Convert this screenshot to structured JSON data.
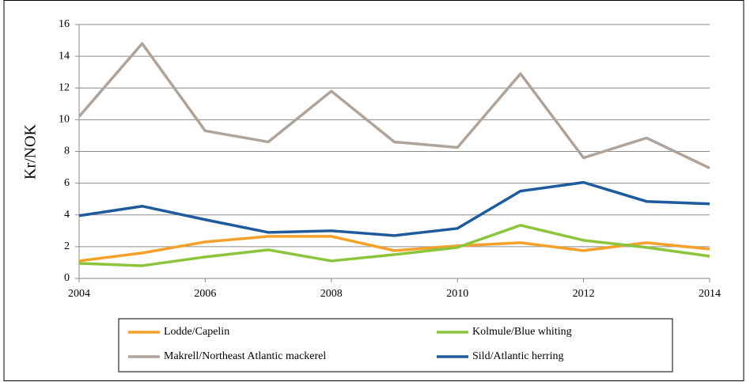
{
  "chart_data": {
    "type": "line",
    "x": [
      2004,
      2005,
      2006,
      2007,
      2008,
      2009,
      2010,
      2011,
      2012,
      2013,
      2014
    ],
    "xlim": [
      2004,
      2014
    ],
    "xticks": [
      2004,
      2006,
      2008,
      2010,
      2012,
      2014
    ],
    "ylim": [
      0,
      16
    ],
    "yticks": [
      0,
      2,
      4,
      6,
      8,
      10,
      12,
      14,
      16
    ],
    "y_label": "Kr/NOK",
    "grid": true,
    "legend": "bottom",
    "series": [
      {
        "name": "Lodde/Capelin",
        "color": "#f5a02a",
        "values": [
          1.1,
          1.6,
          2.3,
          2.65,
          2.65,
          1.75,
          2.05,
          2.25,
          1.75,
          2.25,
          1.85
        ]
      },
      {
        "name": "Kolmule/Blue whiting",
        "color": "#8cc43c",
        "values": [
          0.95,
          0.8,
          1.35,
          1.8,
          1.1,
          1.5,
          1.95,
          3.35,
          2.4,
          1.95,
          1.4
        ]
      },
      {
        "name": "Makrell/Northeast Atlantic mackerel",
        "color": "#b0a49a",
        "values": [
          10.2,
          14.8,
          9.3,
          8.6,
          11.8,
          8.6,
          8.25,
          12.9,
          7.6,
          8.85,
          6.95
        ]
      },
      {
        "name": "Sild/Atlantic herring",
        "color": "#1f5b9c",
        "values": [
          3.95,
          4.55,
          3.7,
          2.9,
          3.0,
          2.7,
          3.15,
          5.5,
          6.05,
          4.85,
          4.7
        ]
      }
    ]
  }
}
